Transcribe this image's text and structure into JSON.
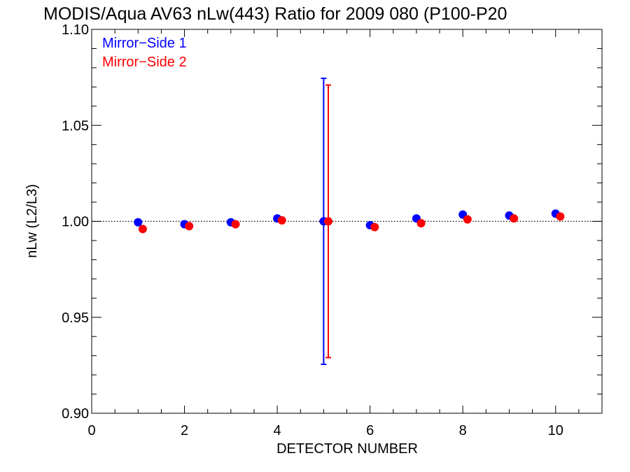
{
  "chart_data": {
    "type": "scatter",
    "title": "MODIS/Aqua AV63 nLw(443) Ratio for 2009 080 (P100-P20",
    "xlabel": "DETECTOR NUMBER",
    "ylabel": "nLw (L2/L3)",
    "xlim": [
      0,
      11
    ],
    "ylim": [
      0.9,
      1.1
    ],
    "x_ticks": [
      0,
      2,
      4,
      6,
      8,
      10
    ],
    "x_tick_labels": [
      "0",
      "2",
      "4",
      "6",
      "8",
      "10"
    ],
    "y_ticks": [
      0.9,
      0.95,
      1.0,
      1.05,
      1.1
    ],
    "y_tick_labels": [
      "0.90",
      "0.95",
      "1.00",
      "1.05",
      "1.10"
    ],
    "reference_line": {
      "y": 1.0,
      "style": "dotted"
    },
    "legend": {
      "placement": "top-left"
    },
    "series": [
      {
        "name": "Mirror−Side 1",
        "color": "#0000ff",
        "x": [
          1,
          2,
          3,
          4,
          5,
          6,
          7,
          8,
          9,
          10
        ],
        "y": [
          0.9995,
          0.9985,
          0.9995,
          1.0015,
          1.0,
          0.998,
          1.0015,
          1.0035,
          1.003,
          1.004
        ],
        "error_bars": [
          {
            "x": 5,
            "low": 0.9255,
            "high": 1.0745
          }
        ]
      },
      {
        "name": "Mirror−Side 2",
        "color": "#ff0000",
        "x": [
          1.1,
          2.1,
          3.1,
          4.1,
          5.1,
          6.1,
          7.1,
          8.1,
          9.1,
          10.1
        ],
        "y": [
          0.996,
          0.9975,
          0.9985,
          1.0005,
          1.0,
          0.997,
          0.999,
          1.001,
          1.0015,
          1.0025
        ],
        "error_bars": [
          {
            "x": 5.1,
            "low": 0.929,
            "high": 1.071
          }
        ]
      }
    ]
  }
}
